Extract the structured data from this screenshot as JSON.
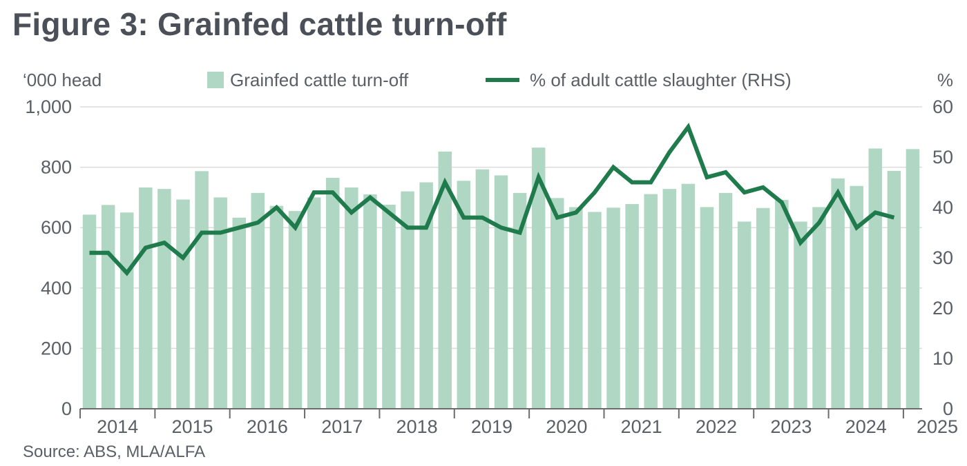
{
  "page": {
    "title": "Figure 3: Grainfed cattle turn-off",
    "source": "Source: ABS, MLA/ALFA"
  },
  "colors": {
    "bar": "#b0d7c4",
    "line": "#1f7a4c",
    "grid": "#dcdcdc",
    "axis": "#6b6b6b",
    "text": "#5a5f66"
  },
  "chart_data": {
    "type": "bar",
    "title": "Figure 3: Grainfed cattle turn-off",
    "ylabel_left": "‘000 head",
    "ylabel_right": "%",
    "ylim_left": [
      0,
      1000
    ],
    "ylim_right": [
      0,
      60
    ],
    "yticks_left": [
      "0",
      "200",
      "400",
      "600",
      "800",
      "1,000"
    ],
    "yticks_right": [
      "0",
      "10",
      "20",
      "30",
      "40",
      "50",
      "60"
    ],
    "xticks": [
      "2014",
      "2015",
      "2016",
      "2017",
      "2018",
      "2019",
      "2020",
      "2021",
      "2022",
      "2023",
      "2024",
      "2025"
    ],
    "grid": true,
    "legend": {
      "position": "top"
    },
    "periods": 45,
    "series": [
      {
        "name": "Grainfed cattle turn-off",
        "type": "bar",
        "axis": "left",
        "values": [
          643,
          675,
          650,
          733,
          728,
          693,
          787,
          700,
          633,
          715,
          672,
          655,
          700,
          765,
          733,
          710,
          676,
          720,
          750,
          852,
          755,
          793,
          773,
          715,
          865,
          698,
          668,
          652,
          666,
          678,
          711,
          728,
          745,
          668,
          715,
          620,
          665,
          692,
          620,
          668,
          763,
          738,
          862,
          788,
          860
        ]
      },
      {
        "name": "% of adult cattle slaughter (RHS)",
        "type": "line",
        "axis": "right",
        "values": [
          31,
          31,
          27,
          32,
          33,
          30,
          35,
          35,
          36,
          37,
          40,
          36,
          43,
          43,
          39,
          42,
          39,
          36,
          36,
          45,
          38,
          38,
          36,
          35,
          46,
          38,
          39,
          43,
          48,
          45,
          45,
          51,
          56,
          46,
          47,
          43,
          44,
          41,
          33,
          37,
          43,
          36,
          39,
          38,
          null
        ]
      }
    ]
  }
}
